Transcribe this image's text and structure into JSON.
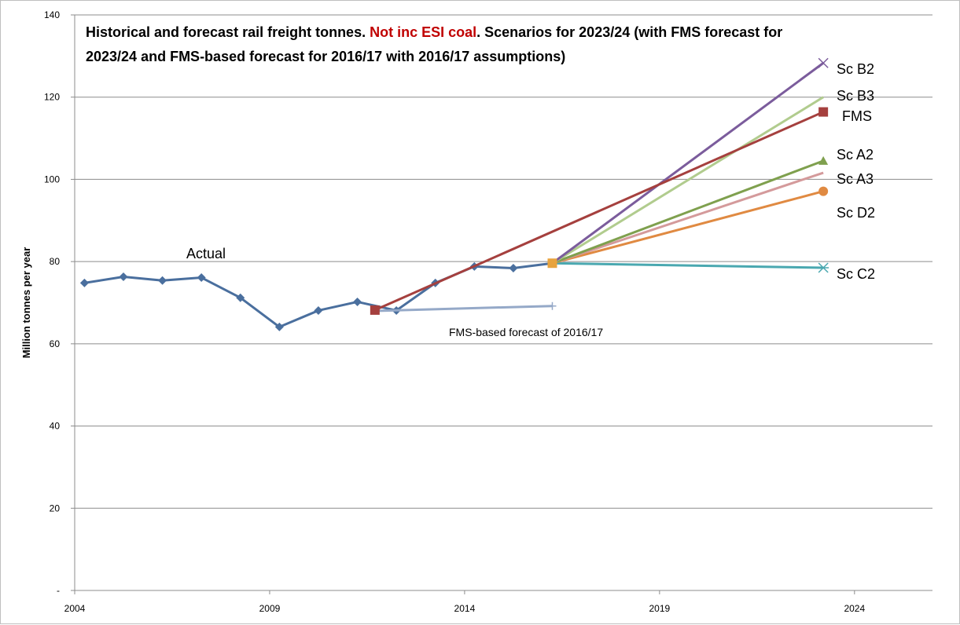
{
  "chart_data": {
    "type": "line",
    "title_part1": "Historical and forecast rail freight tonnes. ",
    "title_highlight": "Not inc ESI coal",
    "title_part2": ".  Scenarios for 2023/24 (with FMS forecast for",
    "title_line2": "2023/24 and FMS-based forecast for 2016/17 with 2016/17 assumptions)",
    "title_highlight_color": "#c00000",
    "xlabel": "",
    "ylabel": "Million tonnes per year",
    "xlim": [
      2004,
      2026
    ],
    "ylim": [
      0,
      140
    ],
    "x_ticks": [
      "2004",
      "2009",
      "2014",
      "2019",
      "2024"
    ],
    "x_tick_values": [
      2004,
      2009,
      2014,
      2019,
      2024
    ],
    "y_ticks": [
      "-",
      "20",
      "40",
      "60",
      "80",
      "100",
      "120",
      "140"
    ],
    "y_tick_values": [
      0,
      20,
      40,
      60,
      80,
      100,
      120,
      140
    ],
    "grid": "horizontal",
    "annotations": {
      "actual": "Actual",
      "fms_forecast_2016": "FMS-based  forecast of 2016/17"
    },
    "series": [
      {
        "name": "Actual",
        "color": "#4a6f9e",
        "marker": "diamond",
        "x": [
          2004.25,
          2005.25,
          2006.25,
          2007.25,
          2008.25,
          2009.25,
          2010.25,
          2011.25,
          2012.25,
          2013.25,
          2014.25,
          2015.25,
          2016.25
        ],
        "y": [
          74.8,
          76.3,
          75.4,
          76.1,
          71.2,
          64.1,
          68.1,
          70.2,
          68.1,
          74.8,
          78.8,
          78.4,
          79.6
        ]
      },
      {
        "name": "FMS",
        "color": "#a5403e",
        "marker": "square",
        "x": [
          2011.7,
          2023.2
        ],
        "y": [
          68.2,
          116.4
        ]
      },
      {
        "name": "FMS-based forecast of 2016/17",
        "color": "#95a9c8",
        "marker": "plus",
        "x": [
          2011.7,
          2016.25
        ],
        "y": [
          68.0,
          69.2
        ]
      },
      {
        "name": "Sc B2",
        "color": "#7b5c9c",
        "marker": "x",
        "x": [
          2016.25,
          2023.2
        ],
        "y": [
          79.6,
          128.3
        ]
      },
      {
        "name": "Sc B3",
        "color": "#b1cc8e",
        "marker": "none",
        "x": [
          2016.25,
          2023.2
        ],
        "y": [
          79.6,
          120.0
        ]
      },
      {
        "name": "Sc A2",
        "color": "#7fa04e",
        "marker": "triangle",
        "x": [
          2016.25,
          2023.2
        ],
        "y": [
          79.6,
          104.5
        ]
      },
      {
        "name": "Sc A3",
        "color": "#d49a9b",
        "marker": "none",
        "x": [
          2016.25,
          2023.2
        ],
        "y": [
          79.6,
          101.6
        ]
      },
      {
        "name": "Sc D2",
        "color": "#e08a42",
        "marker": "circle",
        "x": [
          2016.25,
          2023.2
        ],
        "y": [
          79.6,
          97.1
        ]
      },
      {
        "name": "Sc C2",
        "color": "#4aa8b0",
        "marker": "asterisk",
        "x": [
          2016.25,
          2023.2
        ],
        "y": [
          79.6,
          78.5
        ]
      }
    ]
  }
}
